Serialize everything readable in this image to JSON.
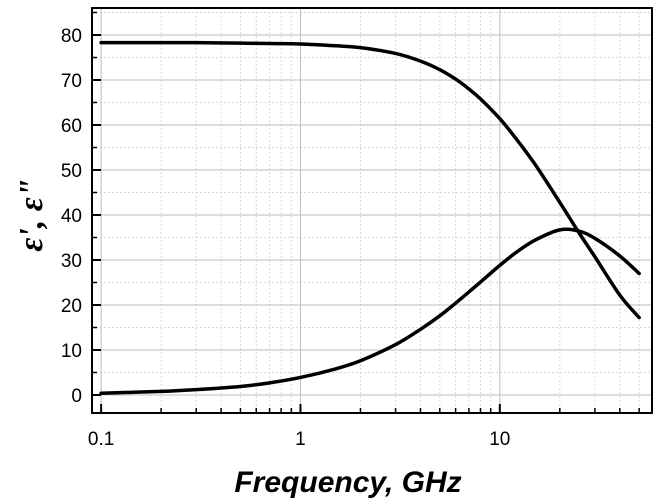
{
  "chart_data": {
    "type": "line",
    "title": "",
    "xlabel": "Frequency,  GHz",
    "ylabel": "ε', ε\"",
    "x_scale": "log",
    "xlim": [
      0.09,
      58
    ],
    "ylim": [
      -4,
      86
    ],
    "x_ticks": [
      {
        "value": 0.1,
        "label": "0.1"
      },
      {
        "value": 1,
        "label": "1"
      },
      {
        "value": 10,
        "label": "10"
      }
    ],
    "y_ticks": [
      {
        "value": 0,
        "label": "0"
      },
      {
        "value": 10,
        "label": "10"
      },
      {
        "value": 20,
        "label": "20"
      },
      {
        "value": 30,
        "label": "30"
      },
      {
        "value": 40,
        "label": "40"
      },
      {
        "value": 50,
        "label": "50"
      },
      {
        "value": 60,
        "label": "60"
      },
      {
        "value": 70,
        "label": "70"
      },
      {
        "value": 80,
        "label": "80"
      }
    ],
    "grid": true,
    "series_color": "#000000",
    "series": [
      {
        "x": [
          0.1,
          0.2,
          0.3,
          0.5,
          0.7,
          1,
          1.5,
          2,
          3,
          4,
          5,
          6,
          7,
          8,
          10,
          12,
          15,
          20,
          25,
          30,
          40,
          50
        ],
        "values": [
          78.3,
          78.3,
          78.3,
          78.2,
          78.1,
          78.0,
          77.6,
          77.2,
          75.9,
          74.2,
          72.3,
          70.2,
          68.0,
          65.8,
          61.4,
          57.1,
          51.3,
          42.8,
          36.0,
          30.7,
          22.2,
          17.2
        ]
      },
      {
        "x": [
          0.1,
          0.2,
          0.3,
          0.5,
          0.7,
          1,
          1.5,
          2,
          3,
          4,
          5,
          6,
          7,
          8,
          10,
          12,
          15,
          20,
          25,
          30,
          40,
          50
        ],
        "values": [
          0.4,
          0.8,
          1.2,
          1.9,
          2.7,
          3.9,
          5.8,
          7.6,
          11.2,
          14.6,
          17.6,
          20.4,
          22.9,
          25.1,
          28.8,
          31.6,
          34.4,
          36.7,
          36.4,
          34.8,
          30.9,
          27.0
        ]
      }
    ]
  }
}
